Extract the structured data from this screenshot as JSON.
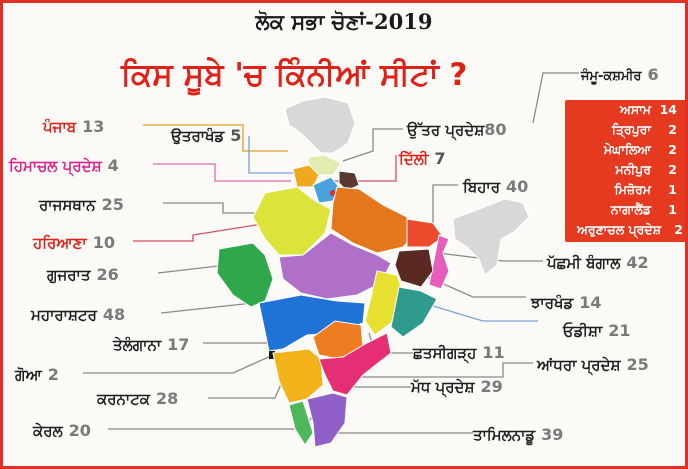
{
  "title": "ਲੋਕ ਸਭਾ ਚੋਣਾਂ-2019",
  "subtitle": "ਕਿਸ ਸੂਬੇ 'ਚ ਕਿੰਨੀਆਂ ਸੀਟਾਂ ?",
  "colors": {
    "border": "#e03127",
    "subtitle": "#e02118",
    "ne_box": "#e53a20",
    "leader_lines": [
      "#e0a020",
      "#7aa0d8",
      "#e06ab0",
      "#d05060",
      "#8a8a8a"
    ]
  },
  "states": [
    {
      "name": "ਪੰਜਾਬ",
      "seats": "13"
    },
    {
      "name": "ਉਤਰਾਖੰਡ",
      "seats": "5"
    },
    {
      "name": "ਹਿਮਾਚਲ ਪ੍ਰਦੇਸ਼",
      "seats": "4"
    },
    {
      "name": "ਰਾਜਸਥਾਨ",
      "seats": "25"
    },
    {
      "name": "ਹਰਿਆਣਾ",
      "seats": "10"
    },
    {
      "name": "ਗੁਜਰਾਤ",
      "seats": "26"
    },
    {
      "name": "ਮਹਾਰਾਸ਼ਟਰ",
      "seats": "48"
    },
    {
      "name": "ਤੇਲੰਗਾਨਾ",
      "seats": "17"
    },
    {
      "name": "ਗੋਆ",
      "seats": "2"
    },
    {
      "name": "ਕਰਨਾਟਕ",
      "seats": "28"
    },
    {
      "name": "ਕੇਰਲ",
      "seats": "20"
    },
    {
      "name": "ਉੱਤਰ ਪ੍ਰਦੇਸ਼",
      "seats": "80"
    },
    {
      "name": "ਦਿੱਲੀ",
      "seats": "7"
    },
    {
      "name": "ਬਿਹਾਰ",
      "seats": "40"
    },
    {
      "name": "ਪੱਛਮੀ ਬੰਗਾਲ",
      "seats": "42"
    },
    {
      "name": "ਝਾਰਖੰਡ",
      "seats": "14"
    },
    {
      "name": "ਓਡੀਸ਼ਾ",
      "seats": "21"
    },
    {
      "name": "ਛਤਸੀਗੜ੍ਹ",
      "seats": "11"
    },
    {
      "name": "ਆਂਧਰਾ ਪ੍ਰਦੇਸ਼",
      "seats": "25"
    },
    {
      "name": "ਮੱਧ ਪ੍ਰਦੇਸ਼",
      "seats": "29"
    },
    {
      "name": "ਤਾਮਿਲਨਾਡੂ",
      "seats": "39"
    },
    {
      "name": "ਜੰਮੂ-ਕਸ਼ਮੀਰ",
      "seats": "6"
    }
  ],
  "northeast": [
    {
      "name": "ਅਸਾਮ",
      "seats": "14"
    },
    {
      "name": "ਤ੍ਰਿਪੁਰਾ",
      "seats": "2"
    },
    {
      "name": "ਮੇਘਾਲਿਆ",
      "seats": "2"
    },
    {
      "name": "ਮਨੀਪੁਰ",
      "seats": "2"
    },
    {
      "name": "ਮਿਜ਼ੋਰਮ",
      "seats": "1"
    },
    {
      "name": "ਨਾਗਾਲੈਂਡ",
      "seats": "1"
    },
    {
      "name": "ਅਰੁਣਾਚਲ ਪ੍ਰਦੇਸ਼",
      "seats": "2"
    }
  ]
}
